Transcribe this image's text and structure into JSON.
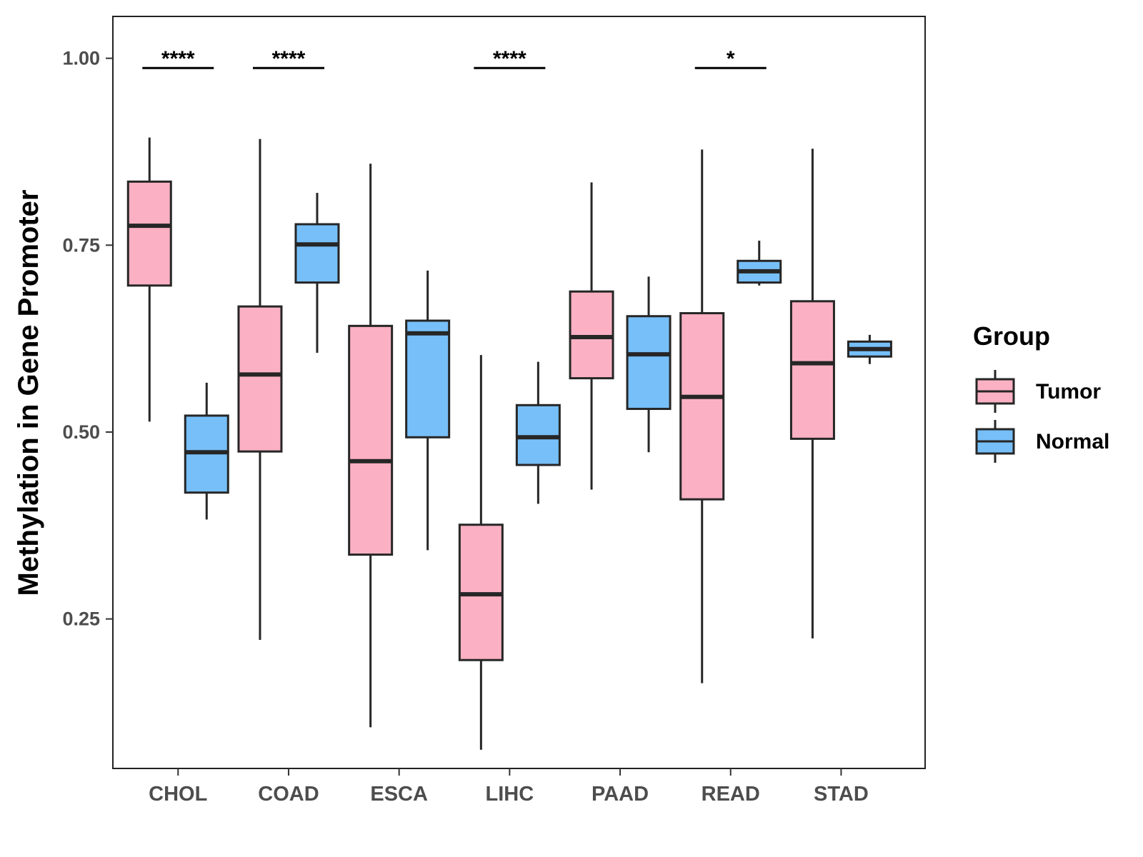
{
  "chart_data": {
    "type": "boxplot",
    "title": "",
    "xlabel": "",
    "ylabel": "Methylation in Gene Promoter",
    "ylim": [
      0.05,
      1.056
    ],
    "yticks": [
      0.25,
      0.5,
      0.75,
      1.0
    ],
    "ytick_labels": [
      "0.25",
      "0.50",
      "0.75",
      "1.00"
    ],
    "categories": [
      "CHOL",
      "COAD",
      "ESCA",
      "LIHC",
      "PAAD",
      "READ",
      "STAD"
    ],
    "legend": {
      "title": "Group",
      "position": "right",
      "entries": [
        {
          "name": "Tumor",
          "color": "#FBB1C3"
        },
        {
          "name": "Normal",
          "color": "#77BFF8"
        }
      ]
    },
    "series": [
      {
        "name": "Tumor",
        "color": "#FBB1C3",
        "boxes": [
          {
            "category": "CHOL",
            "min": 0.514,
            "q1": 0.696,
            "median": 0.776,
            "q3": 0.835,
            "max": 0.894
          },
          {
            "category": "COAD",
            "min": 0.222,
            "q1": 0.474,
            "median": 0.577,
            "q3": 0.668,
            "max": 0.892
          },
          {
            "category": "ESCA",
            "min": 0.105,
            "q1": 0.336,
            "median": 0.461,
            "q3": 0.642,
            "max": 0.859
          },
          {
            "category": "LIHC",
            "min": 0.075,
            "q1": 0.195,
            "median": 0.283,
            "q3": 0.376,
            "max": 0.603
          },
          {
            "category": "PAAD",
            "min": 0.423,
            "q1": 0.572,
            "median": 0.627,
            "q3": 0.688,
            "max": 0.834
          },
          {
            "category": "READ",
            "min": 0.164,
            "q1": 0.41,
            "median": 0.547,
            "q3": 0.659,
            "max": 0.878
          },
          {
            "category": "STAD",
            "min": 0.224,
            "q1": 0.491,
            "median": 0.592,
            "q3": 0.675,
            "max": 0.879
          }
        ]
      },
      {
        "name": "Normal",
        "color": "#77BFF8",
        "boxes": [
          {
            "category": "CHOL",
            "min": 0.383,
            "q1": 0.419,
            "median": 0.473,
            "q3": 0.522,
            "max": 0.566
          },
          {
            "category": "COAD",
            "min": 0.606,
            "q1": 0.7,
            "median": 0.751,
            "q3": 0.778,
            "max": 0.82
          },
          {
            "category": "ESCA",
            "min": 0.342,
            "q1": 0.493,
            "median": 0.632,
            "q3": 0.649,
            "max": 0.716
          },
          {
            "category": "LIHC",
            "min": 0.404,
            "q1": 0.456,
            "median": 0.493,
            "q3": 0.536,
            "max": 0.594
          },
          {
            "category": "PAAD",
            "min": 0.473,
            "q1": 0.531,
            "median": 0.604,
            "q3": 0.655,
            "max": 0.708
          },
          {
            "category": "READ",
            "min": 0.696,
            "q1": 0.7,
            "median": 0.715,
            "q3": 0.729,
            "max": 0.756
          },
          {
            "category": "STAD",
            "min": 0.591,
            "q1": 0.601,
            "median": 0.611,
            "q3": 0.621,
            "max": 0.63
          }
        ]
      }
    ],
    "significance": [
      {
        "category": "CHOL",
        "label": "****",
        "y": 0.987
      },
      {
        "category": "COAD",
        "label": "****",
        "y": 0.987
      },
      {
        "category": "LIHC",
        "label": "****",
        "y": 0.987
      },
      {
        "category": "READ",
        "label": "*",
        "y": 0.987
      }
    ],
    "grid": false
  }
}
